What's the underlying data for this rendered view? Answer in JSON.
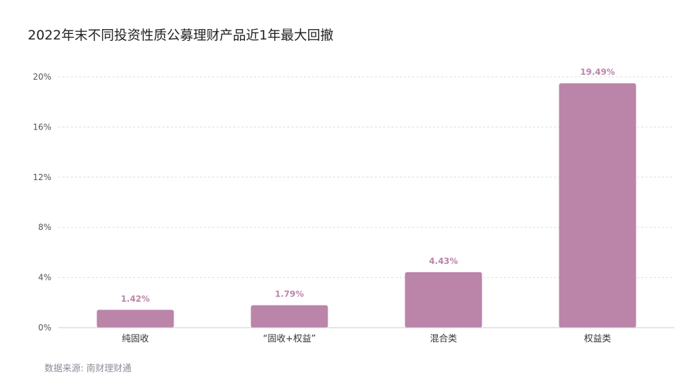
{
  "title": "2022年末不同投资性质公募理财产品近1年最大回撤",
  "source": {
    "label": "数据来源:",
    "value": "南财理财通"
  },
  "chart_data": {
    "type": "bar",
    "categories": [
      "纯固收",
      "“固收+权益”",
      "混合类",
      "权益类"
    ],
    "values": [
      1.42,
      1.79,
      4.43,
      19.49
    ],
    "value_labels": [
      "1.42%",
      "1.79%",
      "4.43%",
      "19.49%"
    ],
    "title": "2022年末不同投资性质公募理财产品近1年最大回撤",
    "xlabel": "",
    "ylabel": "",
    "ylim": [
      0,
      20
    ],
    "yticks": [
      0,
      4,
      8,
      12,
      16,
      20
    ],
    "ytick_labels": [
      "0%",
      "4%",
      "8%",
      "12%",
      "16%",
      "20%"
    ],
    "grid": true,
    "bar_color": "#bb84a9",
    "label_color": "#bb84a9"
  }
}
